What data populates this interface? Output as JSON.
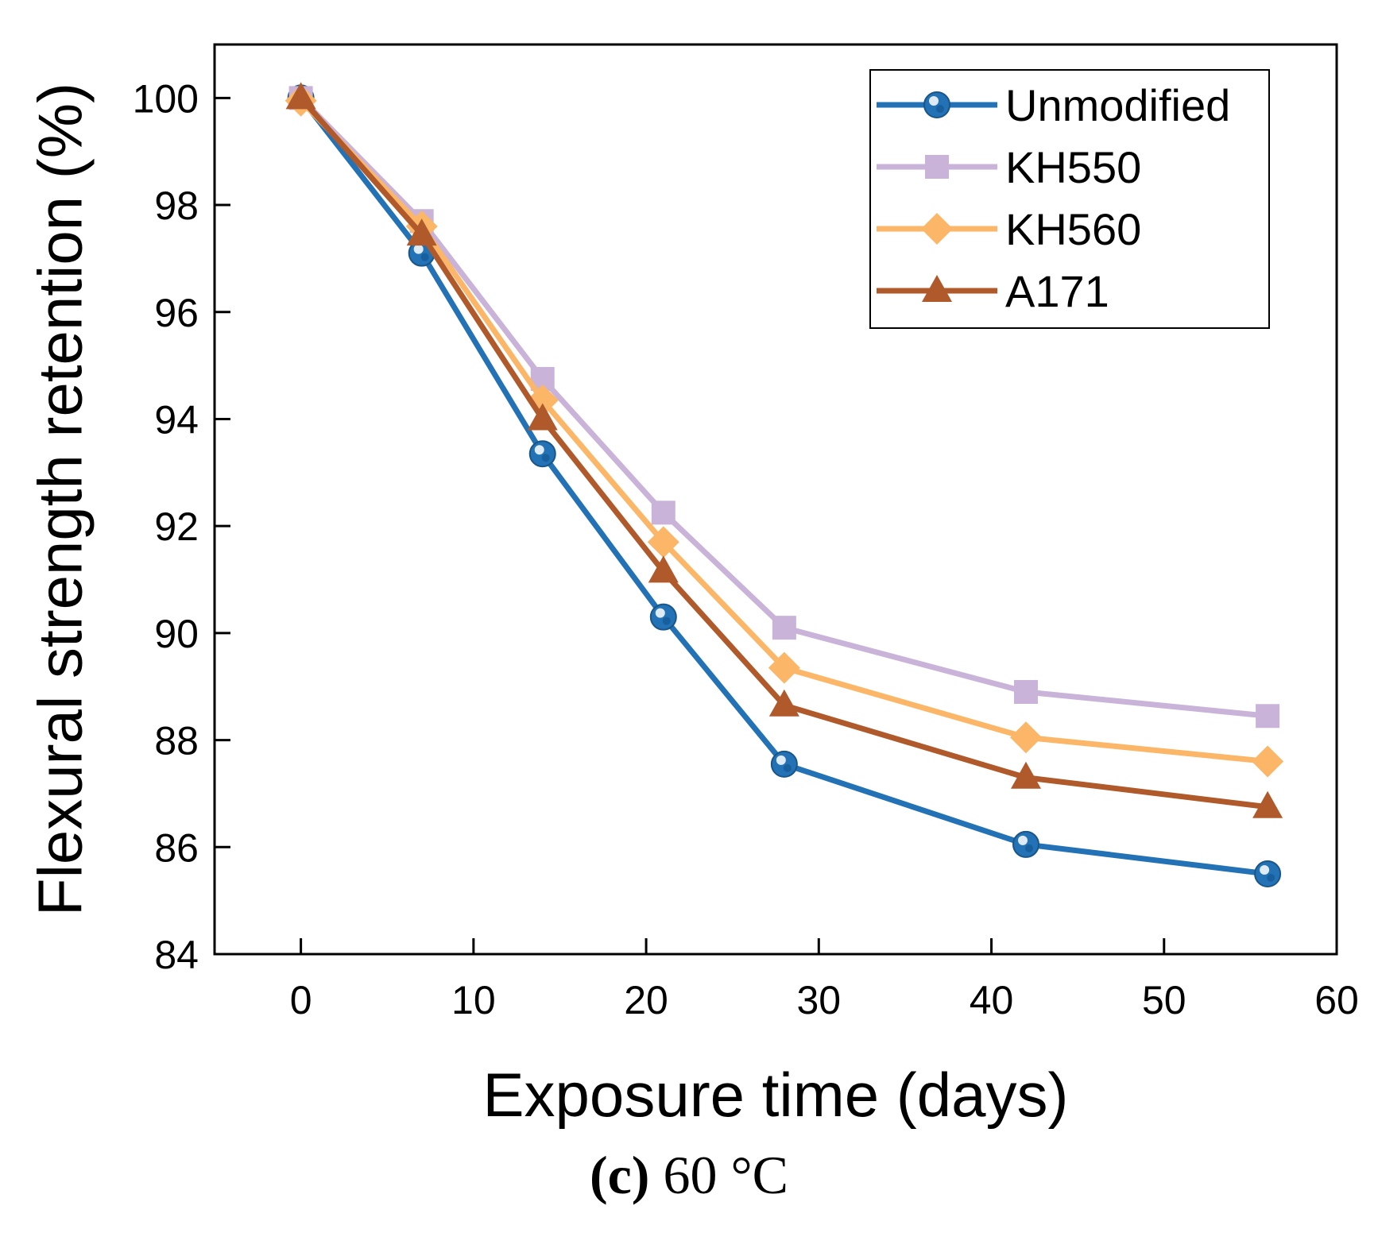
{
  "chart_data": {
    "type": "line",
    "xlabel": "Exposure time (days)",
    "ylabel": "Flexural strength retention (%)",
    "xlim": [
      -5,
      60
    ],
    "ylim": [
      84,
      101
    ],
    "xticks": [
      0,
      10,
      20,
      30,
      40,
      50,
      60
    ],
    "yticks": [
      84,
      86,
      88,
      90,
      92,
      94,
      96,
      98,
      100
    ],
    "x": [
      0,
      7,
      14,
      21,
      28,
      42,
      56
    ],
    "grid": false,
    "legend_position": "top-right",
    "series": [
      {
        "name": "Unmodified",
        "color": "#2272b5",
        "marker": "circle",
        "values": [
          100,
          97.1,
          93.35,
          90.3,
          87.55,
          86.05,
          85.5
        ]
      },
      {
        "name": "KH550",
        "color": "#c9b3d8",
        "marker": "square",
        "values": [
          100,
          97.7,
          94.75,
          92.25,
          90.1,
          88.9,
          88.45
        ]
      },
      {
        "name": "KH560",
        "color": "#fbb668",
        "marker": "diamond",
        "values": [
          99.95,
          97.6,
          94.35,
          91.7,
          89.35,
          88.05,
          87.6
        ]
      },
      {
        "name": "A171",
        "color": "#b0592b",
        "marker": "triangle",
        "values": [
          100,
          97.45,
          94.0,
          91.15,
          88.65,
          87.3,
          86.75
        ]
      }
    ]
  },
  "caption": {
    "letter": "(c)",
    "text": "60 °C"
  }
}
